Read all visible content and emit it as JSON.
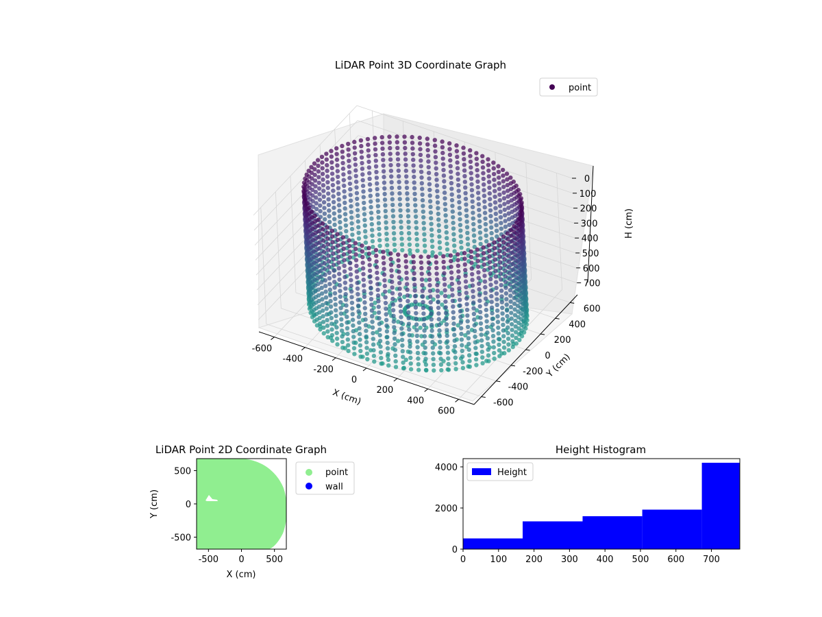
{
  "chart_data": [
    {
      "type": "scatter",
      "projection": "3d",
      "title": "LiDAR Point 3D Coordinate Graph",
      "xlabel": "X (cm)",
      "ylabel": "Y (cm)",
      "zlabel": "H (cm)",
      "xlim": [
        -700,
        700
      ],
      "ylim": [
        -700,
        700
      ],
      "zlim": [
        780,
        0
      ],
      "x_ticks": [
        -600,
        -400,
        -200,
        0,
        200,
        400,
        600
      ],
      "y_ticks": [
        -600,
        -400,
        -200,
        0,
        200,
        400,
        600
      ],
      "z_ticks": [
        0,
        100,
        200,
        300,
        400,
        500,
        600,
        700
      ],
      "z_inverted": true,
      "colormap": "viridis",
      "grid": true,
      "legend": {
        "location": "upper-right",
        "entries": [
          {
            "label": "point",
            "color": "#440154"
          }
        ]
      },
      "series": [
        {
          "name": "point",
          "description_shape": "cylindrical wall with floor",
          "radius_approx": 640,
          "height_range": [
            0,
            780
          ]
        }
      ]
    },
    {
      "type": "scatter",
      "title": "LiDAR Point 2D Coordinate Graph",
      "xlabel": "X (cm)",
      "ylabel": "Y (cm)",
      "xlim": [
        -680,
        680
      ],
      "ylim": [
        -680,
        680
      ],
      "x_ticks": [
        -500,
        0,
        500
      ],
      "y_ticks": [
        -500,
        0,
        500
      ],
      "legend": {
        "location": "outside-right",
        "entries": [
          {
            "label": "point",
            "color": "#90ee90"
          },
          {
            "label": "wall",
            "color": "#0000ff"
          }
        ]
      }
    },
    {
      "type": "bar",
      "subtype": "histogram",
      "title": "Height Histogram",
      "xlabel": "",
      "ylabel": "",
      "xlim": [
        0,
        780
      ],
      "ylim": [
        0,
        4400
      ],
      "x_ticks": [
        0,
        100,
        200,
        300,
        400,
        500,
        600,
        700
      ],
      "y_ticks": [
        0,
        2000,
        4000
      ],
      "bins": [
        {
          "start": 0,
          "end": 168,
          "count": 520
        },
        {
          "start": 168,
          "end": 337,
          "count": 1350
        },
        {
          "start": 337,
          "end": 505,
          "count": 1600
        },
        {
          "start": 505,
          "end": 673,
          "count": 1920
        },
        {
          "start": 673,
          "end": 780,
          "count": 4200
        }
      ],
      "color": "#0000ff",
      "legend": {
        "location": "upper-left",
        "entries": [
          {
            "label": "Height",
            "color": "#0000ff"
          }
        ]
      }
    }
  ]
}
